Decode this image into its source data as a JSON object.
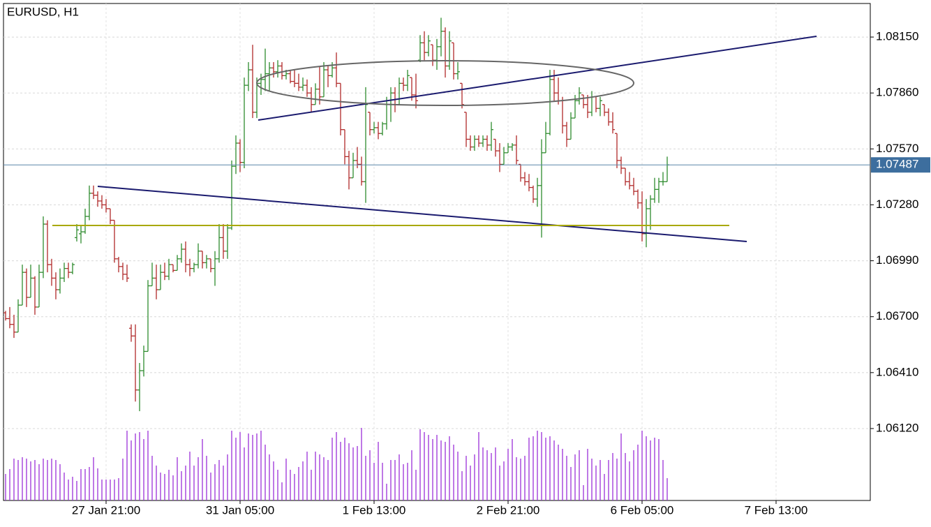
{
  "chart_data": {
    "type": "ohlc",
    "title": "EURUSD, H1",
    "up_color": "#2e8b2e",
    "down_color": "#b02a2a",
    "volume_color": "#9b30d9",
    "grid": true,
    "last_price": 1.07487,
    "ylim": [
      1.05747,
      1.08324
    ],
    "yticks": [
      {
        "value": 1.0815,
        "label": "1.08150"
      },
      {
        "value": 1.0786,
        "label": "1.07860"
      },
      {
        "value": 1.0757,
        "label": "1.07570"
      },
      {
        "value": 1.0728,
        "label": "1.07280"
      },
      {
        "value": 1.0699,
        "label": "1.06990"
      },
      {
        "value": 1.067,
        "label": "1.06700"
      },
      {
        "value": 1.0641,
        "label": "1.06410"
      },
      {
        "value": 1.0612,
        "label": "1.06120"
      }
    ],
    "xlim": [
      -0.5,
      206.5
    ],
    "xticks": [
      {
        "value": 24,
        "label": "27 Jan 21:00"
      },
      {
        "value": 56,
        "label": "31 Jan 05:00"
      },
      {
        "value": 88,
        "label": "1 Feb 13:00"
      },
      {
        "value": 120,
        "label": "2 Feb 21:00"
      },
      {
        "value": 152,
        "label": "6 Feb 05:00"
      },
      {
        "value": 184,
        "label": "7 Feb 13:00"
      }
    ],
    "volume_lim": [
      0,
      110
    ],
    "ohlc": [
      [
        1.0672,
        1.0673,
        1.0668,
        1.0669
      ],
      [
        1.0669,
        1.0675,
        1.0664,
        1.0666
      ],
      [
        1.0666,
        1.0671,
        1.0659,
        1.0662
      ],
      [
        1.0662,
        1.0679,
        1.0662,
        1.0676
      ],
      [
        1.0676,
        1.0697,
        1.0676,
        1.0693
      ],
      [
        1.0693,
        1.0695,
        1.0675,
        1.068
      ],
      [
        1.068,
        1.0697,
        1.068,
        1.069
      ],
      [
        1.069,
        1.0691,
        1.0671,
        1.0675
      ],
      [
        1.0675,
        1.0697,
        1.0675,
        1.0693
      ],
      [
        1.0693,
        1.0722,
        1.069,
        1.0718
      ],
      [
        1.0718,
        1.072,
        1.0693,
        1.0697
      ],
      [
        1.0697,
        1.07,
        1.0686,
        1.069
      ],
      [
        1.069,
        1.0693,
        1.0679,
        1.0684
      ],
      [
        1.0684,
        1.0695,
        1.0682,
        1.069
      ],
      [
        1.069,
        1.0698,
        1.0688,
        1.0695
      ],
      [
        1.0695,
        1.0698,
        1.069,
        1.0693
      ],
      [
        1.0693,
        1.0698,
        1.0692,
        1.0697
      ],
      [
        1.0711,
        1.0718,
        1.0709,
        1.0715
      ],
      [
        1.0713,
        1.0717,
        1.0708,
        1.0714
      ],
      [
        1.0714,
        1.0726,
        1.0713,
        1.0722
      ],
      [
        1.0722,
        1.0738,
        1.072,
        1.0734
      ],
      [
        1.0734,
        1.0738,
        1.0731,
        1.0733
      ],
      [
        1.0733,
        1.0735,
        1.0727,
        1.073
      ],
      [
        1.073,
        1.0733,
        1.0726,
        1.0728
      ],
      [
        1.0728,
        1.0731,
        1.0724,
        1.0726
      ],
      [
        1.0726,
        1.0726,
        1.0718,
        1.072
      ],
      [
        1.072,
        1.072,
        1.0698,
        1.07
      ],
      [
        1.07,
        1.0701,
        1.0693,
        1.0696
      ],
      [
        1.0696,
        1.0698,
        1.0689,
        1.0692
      ],
      [
        1.0692,
        1.0697,
        1.0688,
        1.069
      ],
      [
        1.0664,
        1.0666,
        1.0657,
        1.066
      ],
      [
        1.066,
        1.0666,
        1.0626,
        1.0632
      ],
      [
        1.0632,
        1.0646,
        1.0621,
        1.0642
      ],
      [
        1.0642,
        1.0655,
        1.0639,
        1.0652
      ],
      [
        1.0652,
        1.0689,
        1.0652,
        1.0686
      ],
      [
        1.0686,
        1.0698,
        1.0686,
        1.069
      ],
      [
        1.069,
        1.0697,
        1.0679,
        1.0684
      ],
      [
        1.0684,
        1.0697,
        1.0684,
        1.0693
      ],
      [
        1.0693,
        1.0698,
        1.0689,
        1.0691
      ],
      [
        1.0691,
        1.07,
        1.0689,
        1.0697
      ],
      [
        1.0697,
        1.0697,
        1.0693,
        1.0694
      ],
      [
        1.0694,
        1.0702,
        1.0694,
        1.07
      ],
      [
        1.07,
        1.0708,
        1.0698,
        1.0705
      ],
      [
        1.0705,
        1.0709,
        1.0693,
        1.0697
      ],
      [
        1.0697,
        1.07,
        1.0691,
        1.0695
      ],
      [
        1.0695,
        1.0698,
        1.0693,
        1.0697
      ],
      [
        1.0697,
        1.0708,
        1.0695,
        1.0704
      ],
      [
        1.0704,
        1.0704,
        1.0695,
        1.0698
      ],
      [
        1.0698,
        1.0702,
        1.0695,
        1.07
      ],
      [
        1.07,
        1.07,
        1.0693,
        1.0695
      ],
      [
        1.0695,
        1.0704,
        1.0686,
        1.07
      ],
      [
        1.07,
        1.0718,
        1.0698,
        1.0711
      ],
      [
        1.0711,
        1.0718,
        1.07,
        1.0704
      ],
      [
        1.0704,
        1.0718,
        1.07,
        1.0716
      ],
      [
        1.0716,
        1.0751,
        1.0715,
        1.0748
      ],
      [
        1.0748,
        1.0764,
        1.0744,
        1.076
      ],
      [
        1.076,
        1.0762,
        1.0745,
        1.075
      ],
      [
        1.075,
        1.0794,
        1.0747,
        1.079
      ],
      [
        1.079,
        1.0802,
        1.0787,
        1.0798
      ],
      [
        1.0798,
        1.0811,
        1.0773,
        1.0776
      ],
      [
        1.0776,
        1.0794,
        1.0773,
        1.0791
      ],
      [
        1.0791,
        1.0796,
        1.0785,
        1.0793
      ],
      [
        1.0793,
        1.0809,
        1.0787,
        1.0796
      ],
      [
        1.0796,
        1.0802,
        1.0787,
        1.0799
      ],
      [
        1.0799,
        1.0802,
        1.0794,
        1.0797
      ],
      [
        1.0797,
        1.0803,
        1.0794,
        1.08
      ],
      [
        1.08,
        1.0802,
        1.0793,
        1.0795
      ],
      [
        1.0795,
        1.0798,
        1.0793,
        1.0796
      ],
      [
        1.0796,
        1.0798,
        1.0791,
        1.0792
      ],
      [
        1.0792,
        1.0798,
        1.0789,
        1.0791
      ],
      [
        1.0791,
        1.0796,
        1.0787,
        1.0789
      ],
      [
        1.0789,
        1.0794,
        1.0787,
        1.079
      ],
      [
        1.079,
        1.0793,
        1.0784,
        1.0786
      ],
      [
        1.0786,
        1.0789,
        1.0776,
        1.078
      ],
      [
        1.078,
        1.0791,
        1.078,
        1.0788
      ],
      [
        1.0788,
        1.08,
        1.078,
        1.0784
      ],
      [
        1.0784,
        1.0802,
        1.0784,
        1.0798
      ],
      [
        1.0798,
        1.08,
        1.0789,
        1.0795
      ],
      [
        1.0795,
        1.0802,
        1.0794,
        1.0799
      ],
      [
        1.0799,
        1.0807,
        1.0789,
        1.0791
      ],
      [
        1.0791,
        1.0791,
        1.0764,
        1.0767
      ],
      [
        1.0767,
        1.0767,
        1.0749,
        1.0753
      ],
      [
        1.0753,
        1.0756,
        1.0736,
        1.0742
      ],
      [
        1.0742,
        1.0755,
        1.0742,
        1.0751
      ],
      [
        1.0751,
        1.0758,
        1.0747,
        1.0749
      ],
      [
        1.0749,
        1.0753,
        1.0738,
        1.074
      ],
      [
        1.074,
        1.0789,
        1.0729,
        1.078
      ],
      [
        1.0776,
        1.0776,
        1.0764,
        1.0767
      ],
      [
        1.0767,
        1.0771,
        1.0765,
        1.0768
      ],
      [
        1.0768,
        1.0771,
        1.0762,
        1.0765
      ],
      [
        1.0765,
        1.0771,
        1.0764,
        1.077
      ],
      [
        1.077,
        1.0784,
        1.0767,
        1.078
      ],
      [
        1.078,
        1.0789,
        1.0771,
        1.0786
      ],
      [
        1.0786,
        1.0789,
        1.0776,
        1.078
      ],
      [
        1.078,
        1.0794,
        1.078,
        1.0791
      ],
      [
        1.0791,
        1.0794,
        1.0787,
        1.079
      ],
      [
        1.079,
        1.0798,
        1.0787,
        1.0795
      ],
      [
        1.0794,
        1.0794,
        1.0782,
        1.0785
      ],
      [
        1.0785,
        1.0796,
        1.0778,
        1.0782
      ],
      [
        1.0803,
        1.0816,
        1.0802,
        1.0812
      ],
      [
        1.0812,
        1.0818,
        1.0803,
        1.0807
      ],
      [
        1.0807,
        1.0816,
        1.0805,
        1.0813
      ],
      [
        1.0811,
        1.0811,
        1.08,
        1.0803
      ],
      [
        1.0803,
        1.0814,
        1.0798,
        1.081
      ],
      [
        1.081,
        1.0825,
        1.0805,
        1.0818
      ],
      [
        1.0818,
        1.082,
        1.0794,
        1.08
      ],
      [
        1.08,
        1.0818,
        1.0798,
        1.0813
      ],
      [
        1.0812,
        1.0812,
        1.0793,
        1.0796
      ],
      [
        1.0796,
        1.0802,
        1.0793,
        1.0797
      ],
      [
        1.0791,
        1.0791,
        1.0778,
        1.078
      ],
      [
        1.0776,
        1.0776,
        1.0758,
        1.0762
      ],
      [
        1.0762,
        1.0764,
        1.0756,
        1.0758
      ],
      [
        1.0758,
        1.0764,
        1.0756,
        1.0762
      ],
      [
        1.0762,
        1.0764,
        1.0758,
        1.076
      ],
      [
        1.076,
        1.0764,
        1.0758,
        1.0762
      ],
      [
        1.0762,
        1.0764,
        1.0756,
        1.0759
      ],
      [
        1.0759,
        1.0771,
        1.0756,
        1.0767
      ],
      [
        1.0762,
        1.0762,
        1.0753,
        1.0756
      ],
      [
        1.0756,
        1.076,
        1.0745,
        1.0749
      ],
      [
        1.0749,
        1.0758,
        1.0749,
        1.0755
      ],
      [
        1.0755,
        1.076,
        1.0755,
        1.0758
      ],
      [
        1.0758,
        1.076,
        1.0756,
        1.0759
      ],
      [
        1.0759,
        1.0764,
        1.0749,
        1.0751
      ],
      [
        1.0749,
        1.0749,
        1.074,
        1.0742
      ],
      [
        1.0742,
        1.0745,
        1.0738,
        1.074
      ],
      [
        1.074,
        1.0744,
        1.0735,
        1.0737
      ],
      [
        1.0737,
        1.0738,
        1.0729,
        1.0731
      ],
      [
        1.0731,
        1.0742,
        1.0727,
        1.0738
      ],
      [
        1.0738,
        1.0762,
        1.0711,
        1.0755
      ],
      [
        1.0755,
        1.0771,
        1.0755,
        1.0765
      ],
      [
        1.0765,
        1.0798,
        1.0764,
        1.0793
      ],
      [
        1.0793,
        1.0798,
        1.0782,
        1.0786
      ],
      [
        1.0786,
        1.0794,
        1.078,
        1.0782
      ],
      [
        1.0782,
        1.0784,
        1.0765,
        1.0769
      ],
      [
        1.0769,
        1.0771,
        1.0758,
        1.0762
      ],
      [
        1.0762,
        1.0776,
        1.0762,
        1.0773
      ],
      [
        1.0773,
        1.0785,
        1.0773,
        1.0782
      ],
      [
        1.0782,
        1.0789,
        1.078,
        1.0786
      ],
      [
        1.0785,
        1.0785,
        1.0778,
        1.078
      ],
      [
        1.078,
        1.0785,
        1.0773,
        1.0776
      ],
      [
        1.0776,
        1.0787,
        1.0774,
        1.0784
      ],
      [
        1.0784,
        1.0784,
        1.0776,
        1.0778
      ],
      [
        1.0778,
        1.0784,
        1.0774,
        1.0782
      ],
      [
        1.078,
        1.078,
        1.0774,
        1.0776
      ],
      [
        1.0776,
        1.0778,
        1.0769,
        1.0771
      ],
      [
        1.0771,
        1.0776,
        1.0765,
        1.0767
      ],
      [
        1.0765,
        1.0765,
        1.0747,
        1.0751
      ],
      [
        1.0751,
        1.0753,
        1.0744,
        1.0747
      ],
      [
        1.0747,
        1.0747,
        1.0738,
        1.074
      ],
      [
        1.074,
        1.0745,
        1.0736,
        1.0738
      ],
      [
        1.0738,
        1.0742,
        1.0733,
        1.0735
      ],
      [
        1.0735,
        1.0736,
        1.0726,
        1.0729
      ],
      [
        1.0729,
        1.0735,
        1.0709,
        1.0713
      ],
      [
        1.0713,
        1.0731,
        1.0706,
        1.0726
      ],
      [
        1.0726,
        1.0733,
        1.0715,
        1.0731
      ],
      [
        1.0731,
        1.0742,
        1.0729,
        1.0736
      ],
      [
        1.0736,
        1.0742,
        1.0729,
        1.074
      ],
      [
        1.074,
        1.0745,
        1.0738,
        1.074
      ],
      [
        1.074,
        1.0753,
        1.074,
        1.07487
      ]
    ],
    "volume": [
      38,
      45,
      60,
      58,
      62,
      60,
      56,
      58,
      52,
      60,
      58,
      60,
      58,
      52,
      40,
      30,
      34,
      28,
      45,
      45,
      48,
      62,
      46,
      30,
      30,
      30,
      30,
      32,
      60,
      100,
      86,
      96,
      98,
      88,
      100,
      64,
      50,
      40,
      38,
      44,
      36,
      62,
      42,
      50,
      70,
      50,
      62,
      88,
      64,
      40,
      52,
      58,
      50,
      66,
      100,
      90,
      98,
      76,
      96,
      94,
      96,
      100,
      80,
      66,
      56,
      44,
      26,
      60,
      44,
      38,
      48,
      56,
      70,
      44,
      70,
      66,
      62,
      58,
      90,
      98,
      84,
      90,
      82,
      76,
      78,
      104,
      64,
      72,
      54,
      84,
      54,
      24,
      58,
      58,
      66,
      52,
      54,
      72,
      44,
      102,
      98,
      94,
      88,
      94,
      86,
      84,
      92,
      80,
      70,
      42,
      64,
      50,
      66,
      98,
      76,
      72,
      68,
      76,
      50,
      56,
      74,
      88,
      62,
      60,
      64,
      90,
      92,
      100,
      98,
      90,
      92,
      86,
      80,
      74,
      64,
      48,
      66,
      72,
      22,
      74,
      60,
      50,
      58,
      38,
      58,
      68,
      60,
      96,
      68,
      56,
      72,
      80,
      100,
      92,
      86,
      90,
      88,
      58,
      32
    ]
  }
}
